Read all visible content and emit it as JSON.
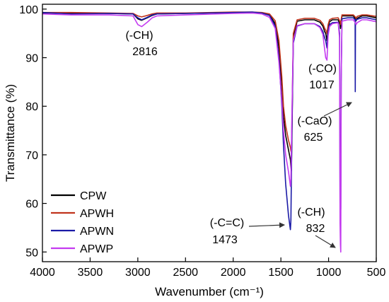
{
  "chart_data": {
    "type": "line",
    "xlabel": "Wavenumber (cm⁻¹)",
    "ylabel": "Transmittance (%)",
    "xlim": [
      4000,
      500
    ],
    "ylim": [
      48,
      101
    ],
    "x_ticks": [
      4000,
      3500,
      3000,
      2500,
      2000,
      1500,
      1000,
      500
    ],
    "y_ticks": [
      50,
      60,
      70,
      80,
      90,
      100
    ],
    "grid": false,
    "legend_position": "bottom-left",
    "series": [
      {
        "name": "CPW",
        "color": "#000000",
        "x": [
          4000,
          3700,
          3300,
          3050,
          3000,
          2960,
          2900,
          2850,
          2800,
          2500,
          2000,
          1800,
          1700,
          1620,
          1560,
          1520,
          1490,
          1473,
          1450,
          1420,
          1400,
          1395,
          1390,
          1385,
          1370,
          1330,
          1250,
          1150,
          1090,
          1060,
          1040,
          1030,
          1017,
          1005,
          990,
          960,
          900,
          880,
          875,
          870,
          860,
          800,
          740,
          720,
          712,
          700,
          650,
          600,
          500
        ],
        "y": [
          99.2,
          99.2,
          99.1,
          99.0,
          98.0,
          97.7,
          98.2,
          98.7,
          99.0,
          99.1,
          99.3,
          99.3,
          99.2,
          98.8,
          97.0,
          92.0,
          84.0,
          78.0,
          74.0,
          71.0,
          69.0,
          67.5,
          66.7,
          73.0,
          94.0,
          97.5,
          97.8,
          97.8,
          97.3,
          96.5,
          95.3,
          95.0,
          93.5,
          96.0,
          97.4,
          97.8,
          97.8,
          96.8,
          96.0,
          97.0,
          98.6,
          98.6,
          98.6,
          98.0,
          97.6,
          98.1,
          98.6,
          98.6,
          98.2
        ]
      },
      {
        "name": "APWH",
        "color": "#c0341d",
        "x": [
          4000,
          3700,
          3300,
          3050,
          3000,
          2960,
          2900,
          2850,
          2800,
          2500,
          2000,
          1800,
          1700,
          1620,
          1560,
          1520,
          1490,
          1473,
          1450,
          1420,
          1400,
          1395,
          1390,
          1385,
          1370,
          1330,
          1250,
          1150,
          1090,
          1060,
          1040,
          1030,
          1017,
          1005,
          990,
          960,
          900,
          880,
          875,
          870,
          860,
          800,
          740,
          720,
          712,
          700,
          650,
          600,
          500
        ],
        "y": [
          99.3,
          99.3,
          99.2,
          99.1,
          98.6,
          98.4,
          98.7,
          99.0,
          99.2,
          99.2,
          99.4,
          99.4,
          99.3,
          99.0,
          97.6,
          93.5,
          86.0,
          80.0,
          76.0,
          73.0,
          71.5,
          70.8,
          70.5,
          76.0,
          95.0,
          97.8,
          98.1,
          98.1,
          97.7,
          97.0,
          96.0,
          95.7,
          95.0,
          96.8,
          97.8,
          98.1,
          98.2,
          97.4,
          96.8,
          97.6,
          98.8,
          98.8,
          98.8,
          98.4,
          98.1,
          98.5,
          98.8,
          98.8,
          98.5
        ]
      },
      {
        "name": "APWN",
        "color": "#1a1aa6",
        "x": [
          4000,
          3700,
          3300,
          3050,
          3000,
          2960,
          2900,
          2850,
          2800,
          2500,
          2000,
          1800,
          1700,
          1620,
          1560,
          1520,
          1490,
          1473,
          1450,
          1420,
          1410,
          1405,
          1400,
          1395,
          1385,
          1370,
          1330,
          1250,
          1150,
          1090,
          1060,
          1040,
          1030,
          1017,
          1005,
          990,
          960,
          900,
          885,
          880,
          876,
          872,
          868,
          860,
          800,
          740,
          722,
          720,
          718,
          712,
          700,
          650,
          600,
          500
        ],
        "y": [
          99.3,
          99.0,
          99.1,
          99.0,
          98.2,
          97.8,
          98.3,
          98.8,
          99.0,
          99.1,
          99.3,
          99.4,
          99.2,
          98.7,
          96.5,
          90.0,
          80.0,
          72.0,
          64.0,
          57.5,
          56.0,
          55.2,
          54.6,
          56.5,
          75.0,
          93.0,
          96.5,
          97.0,
          97.0,
          96.4,
          95.4,
          94.0,
          93.5,
          92.0,
          95.5,
          96.8,
          97.2,
          97.3,
          95.0,
          60.0,
          57.0,
          59.0,
          85.0,
          98.0,
          98.2,
          98.2,
          97.8,
          83.0,
          97.6,
          97.8,
          97.9,
          98.2,
          98.2,
          97.8
        ]
      },
      {
        "name": "APWP",
        "color": "#c43bf0",
        "x": [
          4000,
          3700,
          3300,
          3050,
          3000,
          2960,
          2900,
          2850,
          2800,
          2500,
          2000,
          1800,
          1700,
          1620,
          1560,
          1520,
          1490,
          1473,
          1450,
          1420,
          1410,
          1405,
          1400,
          1395,
          1385,
          1370,
          1330,
          1250,
          1150,
          1090,
          1060,
          1040,
          1030,
          1017,
          1005,
          990,
          960,
          900,
          885,
          880,
          876,
          872,
          868,
          860,
          800,
          740,
          720,
          712,
          700,
          650,
          600,
          500
        ],
        "y": [
          99.0,
          98.8,
          98.8,
          98.6,
          96.8,
          96.4,
          97.3,
          98.2,
          98.6,
          98.8,
          99.1,
          99.2,
          99.0,
          98.3,
          96.0,
          89.0,
          81.0,
          75.0,
          70.0,
          66.5,
          65.0,
          64.2,
          63.5,
          65.0,
          78.0,
          93.5,
          96.6,
          97.0,
          97.0,
          96.2,
          94.8,
          91.5,
          90.0,
          89.5,
          94.5,
          96.4,
          97.0,
          97.2,
          94.0,
          56.0,
          51.5,
          50.0,
          85.0,
          97.5,
          97.8,
          97.8,
          97.2,
          96.8,
          97.2,
          97.8,
          97.8,
          97.4
        ]
      }
    ],
    "annotations": [
      {
        "id": "ch-2816",
        "label": "(-CH)",
        "value": "2816"
      },
      {
        "id": "co-1017",
        "label": "(-CO)",
        "value": "1017"
      },
      {
        "id": "cao-625",
        "label": "(-CaO)",
        "value": "625"
      },
      {
        "id": "cc-1473",
        "label": "(-C=C)",
        "value": "1473"
      },
      {
        "id": "ch-832",
        "label": "(-CH)",
        "value": "832"
      }
    ]
  }
}
